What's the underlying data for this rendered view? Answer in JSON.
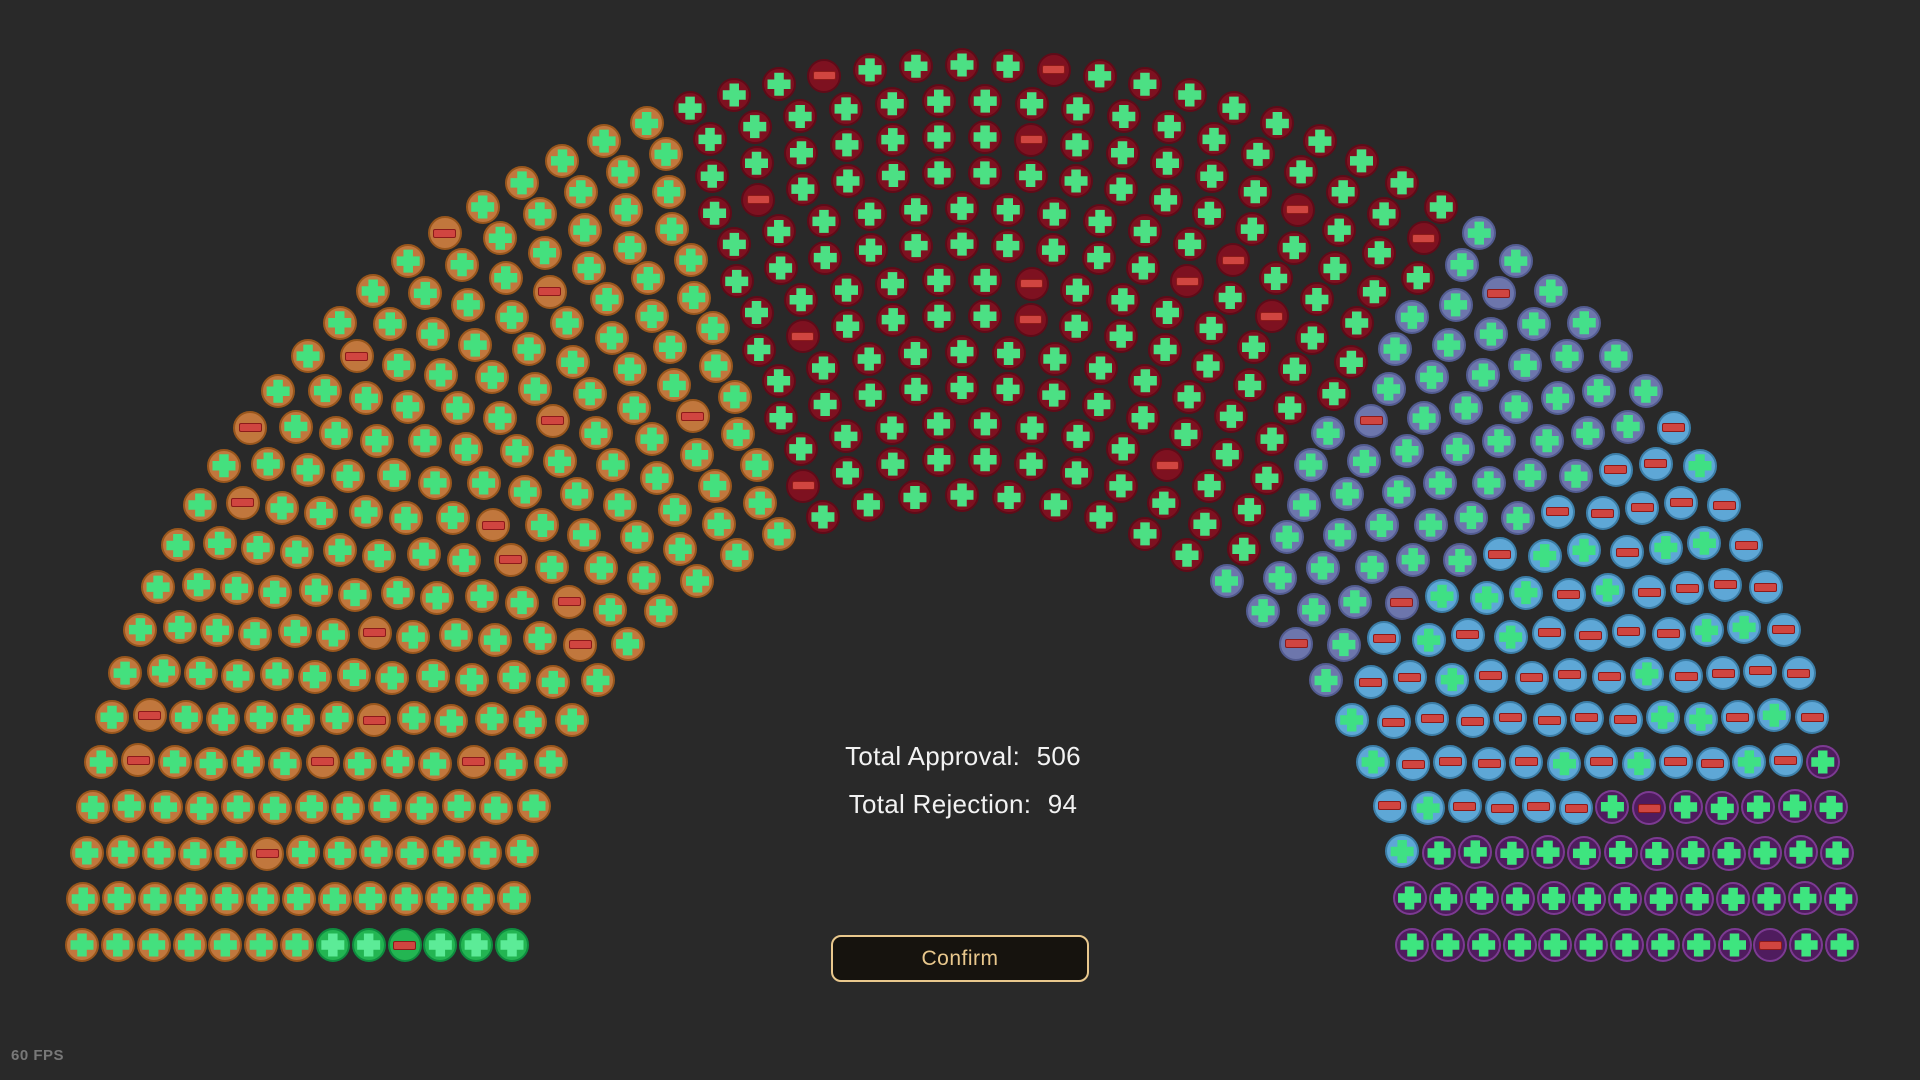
{
  "screen": {
    "fps": "60 FPS",
    "background_color": "#292929"
  },
  "summary": {
    "approval_label": "Total Approval:",
    "approval_value": "506",
    "rejection_label": "Total Rejection:",
    "rejection_value": "94",
    "text_color": "#f2f2f2"
  },
  "confirm": {
    "label": "Confirm",
    "border_color": "#e9c88d",
    "text_color": "#e9c88d",
    "background_color": "#16130e"
  },
  "chart_data": {
    "type": "parliament",
    "title": "",
    "total_seats": 600,
    "total_approval": 506,
    "total_rejection": 94,
    "rows": 13,
    "angle_range_deg": [
      0,
      180
    ],
    "seed": 9,
    "symbols": {
      "approve": "plus-icon",
      "reject": "minus-icon",
      "approve_color": "#41e282",
      "reject_color": "#d04540",
      "reject_border": "#8c1a1a"
    },
    "parties": [
      {
        "name": "green",
        "color": "#23b552",
        "border": "#0f8c3f",
        "approve_color": "#5ceb97",
        "seats": 6,
        "approve": 5,
        "reject": 1
      },
      {
        "name": "orange",
        "color": "#c1773d",
        "border": "#98561c",
        "approve_color": "#44e07e",
        "seats": 228,
        "approve": 210,
        "reject": 18
      },
      {
        "name": "maroon",
        "color": "#7e1120",
        "border": "#5f0b18",
        "approve_color": "#4ce084",
        "seats": 180,
        "approve": 166,
        "reject": 14
      },
      {
        "name": "slate-blue",
        "color": "#6d76ac",
        "border": "#525b90",
        "approve_color": "#44e08a",
        "seats": 60,
        "approve": 56,
        "reject": 4
      },
      {
        "name": "light-blue",
        "color": "#5ea7d6",
        "border": "#3c7ea8",
        "approve_color": "#3fe084",
        "seats": 80,
        "approve": 25,
        "reject": 55
      },
      {
        "name": "purple",
        "color": "#4f1c5e",
        "border": "#7c3a92",
        "approve_color": "#3ee57f",
        "seats": 46,
        "approve": 44,
        "reject": 2
      }
    ]
  }
}
